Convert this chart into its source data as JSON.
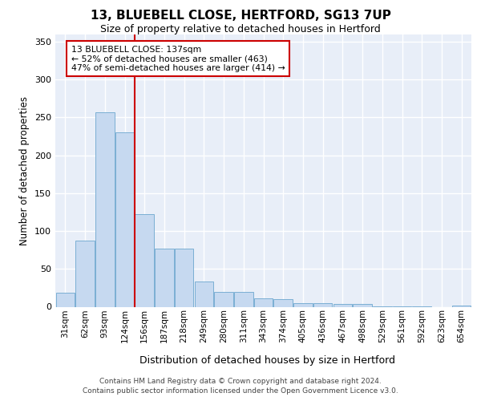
{
  "title1": "13, BLUEBELL CLOSE, HERTFORD, SG13 7UP",
  "title2": "Size of property relative to detached houses in Hertford",
  "xlabel": "Distribution of detached houses by size in Hertford",
  "ylabel": "Number of detached properties",
  "footer1": "Contains HM Land Registry data © Crown copyright and database right 2024.",
  "footer2": "Contains public sector information licensed under the Open Government Licence v3.0.",
  "annotation_title": "13 BLUEBELL CLOSE: 137sqm",
  "annotation_line1": "← 52% of detached houses are smaller (463)",
  "annotation_line2": "47% of semi-detached houses are larger (414) →",
  "bar_color": "#c6d9f0",
  "bar_edge_color": "#7bafd4",
  "vline_color": "#cc0000",
  "categories": [
    "31sqm",
    "62sqm",
    "93sqm",
    "124sqm",
    "156sqm",
    "187sqm",
    "218sqm",
    "249sqm",
    "280sqm",
    "311sqm",
    "343sqm",
    "374sqm",
    "405sqm",
    "436sqm",
    "467sqm",
    "498sqm",
    "529sqm",
    "561sqm",
    "592sqm",
    "623sqm",
    "654sqm"
  ],
  "values": [
    19,
    87,
    257,
    230,
    122,
    77,
    77,
    33,
    20,
    20,
    11,
    10,
    5,
    5,
    4,
    4,
    1,
    1,
    1,
    0,
    2
  ],
  "ylim": [
    0,
    360
  ],
  "yticks": [
    0,
    50,
    100,
    150,
    200,
    250,
    300,
    350
  ],
  "vline_x": 3.5,
  "fig_bg_color": "#ffffff",
  "plot_bg_color": "#e8eef8",
  "grid_color": "#ffffff",
  "annotation_edge_color": "#cc0000",
  "annotation_bg": "#ffffff"
}
